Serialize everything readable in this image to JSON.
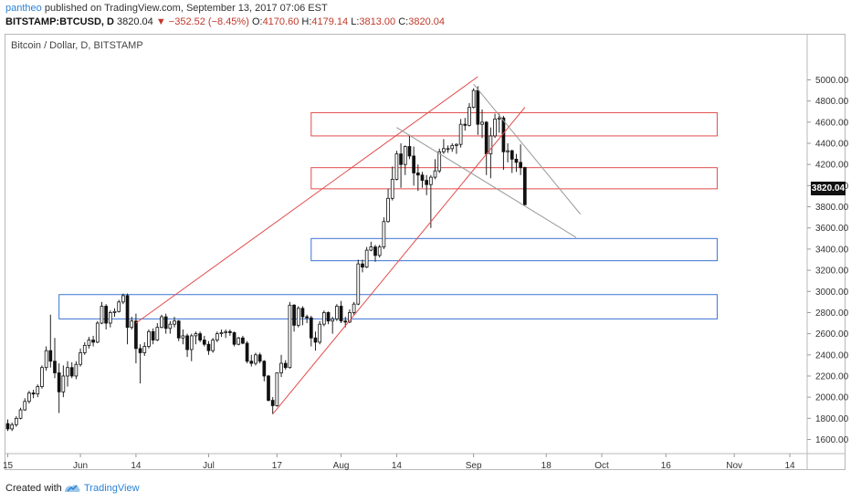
{
  "header": {
    "user": "pantheo",
    "published": "published on TradingView.com, September 13, 2017 07:06 EST",
    "symbol": "BITSTAMP:BTCUSD, D",
    "last": "3820.04",
    "change": "▼ −352.52 (−8.45%)",
    "o_label": "O:",
    "o_value": "4170.60",
    "h_label": "H:",
    "h_value": "4179.14",
    "l_label": "L:",
    "l_value": "3813.00",
    "c_label": "C:",
    "c_value": "3820.04"
  },
  "footer": {
    "created": "Created with",
    "brand": "TradingView"
  },
  "chart_data": {
    "type": "candlestick",
    "title": "Bitcoin / Dollar, D, BITSTAMP",
    "current_price_label": "3820.04",
    "ylim": [
      1500,
      5100
    ],
    "y_ticks": [
      1600,
      1800,
      2000,
      2200,
      2400,
      2600,
      2800,
      3000,
      3200,
      3400,
      3600,
      3800,
      4000,
      4200,
      4400,
      4600,
      4800,
      5000
    ],
    "y_tick_labels": [
      "1600.00",
      "1800.00",
      "2000.00",
      "2200.00",
      "2400.00",
      "2600.00",
      "2800.00",
      "3000.00",
      "3200.00",
      "3400.00",
      "3600.00",
      "3800.00",
      "4000.00",
      "4200.00",
      "4400.00",
      "4600.00",
      "4800.00",
      "5000.00"
    ],
    "x_ticks": [
      {
        "label": "15",
        "date": "2017-05-15"
      },
      {
        "label": "Jun",
        "date": "2017-06-01"
      },
      {
        "label": "14",
        "date": "2017-06-14"
      },
      {
        "label": "Jul",
        "date": "2017-07-01"
      },
      {
        "label": "17",
        "date": "2017-07-17"
      },
      {
        "label": "Aug",
        "date": "2017-08-01"
      },
      {
        "label": "14",
        "date": "2017-08-14"
      },
      {
        "label": "Sep",
        "date": "2017-09-01"
      },
      {
        "label": "18",
        "date": "2017-09-18"
      },
      {
        "label": "Oct",
        "date": "2017-10-01"
      },
      {
        "label": "16",
        "date": "2017-10-16"
      },
      {
        "label": "Nov",
        "date": "2017-11-01"
      },
      {
        "label": "14",
        "date": "2017-11-14"
      }
    ],
    "candles": [
      {
        "date": "2017-05-15",
        "o": 1750,
        "h": 1790,
        "l": 1680,
        "c": 1700
      },
      {
        "date": "2017-05-16",
        "o": 1700,
        "h": 1760,
        "l": 1680,
        "c": 1740
      },
      {
        "date": "2017-05-17",
        "o": 1740,
        "h": 1820,
        "l": 1720,
        "c": 1800
      },
      {
        "date": "2017-05-18",
        "o": 1800,
        "h": 1900,
        "l": 1790,
        "c": 1880
      },
      {
        "date": "2017-05-19",
        "o": 1880,
        "h": 1990,
        "l": 1870,
        "c": 1960
      },
      {
        "date": "2017-05-20",
        "o": 1960,
        "h": 2060,
        "l": 1940,
        "c": 2040
      },
      {
        "date": "2017-05-21",
        "o": 2040,
        "h": 2070,
        "l": 1990,
        "c": 2030
      },
      {
        "date": "2017-05-22",
        "o": 2030,
        "h": 2120,
        "l": 2000,
        "c": 2100
      },
      {
        "date": "2017-05-23",
        "o": 2100,
        "h": 2300,
        "l": 2080,
        "c": 2280
      },
      {
        "date": "2017-05-24",
        "o": 2280,
        "h": 2480,
        "l": 2250,
        "c": 2440
      },
      {
        "date": "2017-05-25",
        "o": 2440,
        "h": 2780,
        "l": 2280,
        "c": 2340
      },
      {
        "date": "2017-05-26",
        "o": 2340,
        "h": 2560,
        "l": 2180,
        "c": 2230
      },
      {
        "date": "2017-05-27",
        "o": 2230,
        "h": 2320,
        "l": 1850,
        "c": 2050
      },
      {
        "date": "2017-05-28",
        "o": 2050,
        "h": 2300,
        "l": 2000,
        "c": 2200
      },
      {
        "date": "2017-05-29",
        "o": 2200,
        "h": 2340,
        "l": 2100,
        "c": 2280
      },
      {
        "date": "2017-05-30",
        "o": 2280,
        "h": 2330,
        "l": 2180,
        "c": 2200
      },
      {
        "date": "2017-05-31",
        "o": 2200,
        "h": 2340,
        "l": 2170,
        "c": 2310
      },
      {
        "date": "2017-06-01",
        "o": 2310,
        "h": 2460,
        "l": 2290,
        "c": 2420
      },
      {
        "date": "2017-06-02",
        "o": 2420,
        "h": 2520,
        "l": 2400,
        "c": 2490
      },
      {
        "date": "2017-06-03",
        "o": 2490,
        "h": 2570,
        "l": 2460,
        "c": 2540
      },
      {
        "date": "2017-06-04",
        "o": 2540,
        "h": 2580,
        "l": 2480,
        "c": 2520
      },
      {
        "date": "2017-06-05",
        "o": 2520,
        "h": 2720,
        "l": 2510,
        "c": 2700
      },
      {
        "date": "2017-06-06",
        "o": 2700,
        "h": 2900,
        "l": 2690,
        "c": 2860
      },
      {
        "date": "2017-06-07",
        "o": 2860,
        "h": 2880,
        "l": 2640,
        "c": 2700
      },
      {
        "date": "2017-06-08",
        "o": 2700,
        "h": 2820,
        "l": 2660,
        "c": 2800
      },
      {
        "date": "2017-06-09",
        "o": 2800,
        "h": 2840,
        "l": 2760,
        "c": 2810
      },
      {
        "date": "2017-06-10",
        "o": 2810,
        "h": 2920,
        "l": 2800,
        "c": 2900
      },
      {
        "date": "2017-06-11",
        "o": 2900,
        "h": 2980,
        "l": 2880,
        "c": 2960
      },
      {
        "date": "2017-06-12",
        "o": 2960,
        "h": 2980,
        "l": 2500,
        "c": 2660
      },
      {
        "date": "2017-06-13",
        "o": 2660,
        "h": 2760,
        "l": 2640,
        "c": 2720
      },
      {
        "date": "2017-06-14",
        "o": 2720,
        "h": 2790,
        "l": 2320,
        "c": 2460
      },
      {
        "date": "2017-06-15",
        "o": 2460,
        "h": 2500,
        "l": 2130,
        "c": 2420
      },
      {
        "date": "2017-06-16",
        "o": 2420,
        "h": 2520,
        "l": 2390,
        "c": 2480
      },
      {
        "date": "2017-06-17",
        "o": 2480,
        "h": 2640,
        "l": 2460,
        "c": 2620
      },
      {
        "date": "2017-06-18",
        "o": 2620,
        "h": 2650,
        "l": 2500,
        "c": 2540
      },
      {
        "date": "2017-06-19",
        "o": 2540,
        "h": 2700,
        "l": 2530,
        "c": 2660
      },
      {
        "date": "2017-06-20",
        "o": 2660,
        "h": 2780,
        "l": 2650,
        "c": 2760
      },
      {
        "date": "2017-06-21",
        "o": 2760,
        "h": 2790,
        "l": 2600,
        "c": 2650
      },
      {
        "date": "2017-06-22",
        "o": 2650,
        "h": 2720,
        "l": 2600,
        "c": 2690
      },
      {
        "date": "2017-06-23",
        "o": 2690,
        "h": 2760,
        "l": 2660,
        "c": 2720
      },
      {
        "date": "2017-06-24",
        "o": 2720,
        "h": 2730,
        "l": 2530,
        "c": 2560
      },
      {
        "date": "2017-06-25",
        "o": 2560,
        "h": 2640,
        "l": 2500,
        "c": 2580
      },
      {
        "date": "2017-06-26",
        "o": 2580,
        "h": 2600,
        "l": 2380,
        "c": 2450
      },
      {
        "date": "2017-06-27",
        "o": 2450,
        "h": 2600,
        "l": 2340,
        "c": 2580
      },
      {
        "date": "2017-06-28",
        "o": 2580,
        "h": 2620,
        "l": 2500,
        "c": 2600
      },
      {
        "date": "2017-06-29",
        "o": 2600,
        "h": 2620,
        "l": 2520,
        "c": 2540
      },
      {
        "date": "2017-06-30",
        "o": 2540,
        "h": 2580,
        "l": 2480,
        "c": 2500
      },
      {
        "date": "2017-07-01",
        "o": 2500,
        "h": 2530,
        "l": 2400,
        "c": 2440
      },
      {
        "date": "2017-07-02",
        "o": 2440,
        "h": 2560,
        "l": 2420,
        "c": 2540
      },
      {
        "date": "2017-07-03",
        "o": 2540,
        "h": 2620,
        "l": 2520,
        "c": 2600
      },
      {
        "date": "2017-07-04",
        "o": 2600,
        "h": 2640,
        "l": 2570,
        "c": 2610
      },
      {
        "date": "2017-07-05",
        "o": 2610,
        "h": 2640,
        "l": 2560,
        "c": 2620
      },
      {
        "date": "2017-07-06",
        "o": 2620,
        "h": 2640,
        "l": 2580,
        "c": 2610
      },
      {
        "date": "2017-07-07",
        "o": 2610,
        "h": 2620,
        "l": 2480,
        "c": 2500
      },
      {
        "date": "2017-07-08",
        "o": 2500,
        "h": 2570,
        "l": 2490,
        "c": 2560
      },
      {
        "date": "2017-07-09",
        "o": 2560,
        "h": 2580,
        "l": 2500,
        "c": 2510
      },
      {
        "date": "2017-07-10",
        "o": 2510,
        "h": 2530,
        "l": 2320,
        "c": 2340
      },
      {
        "date": "2017-07-11",
        "o": 2340,
        "h": 2400,
        "l": 2290,
        "c": 2320
      },
      {
        "date": "2017-07-12",
        "o": 2320,
        "h": 2420,
        "l": 2300,
        "c": 2400
      },
      {
        "date": "2017-07-13",
        "o": 2400,
        "h": 2420,
        "l": 2320,
        "c": 2340
      },
      {
        "date": "2017-07-14",
        "o": 2340,
        "h": 2350,
        "l": 2150,
        "c": 2200
      },
      {
        "date": "2017-07-15",
        "o": 2200,
        "h": 2210,
        "l": 1960,
        "c": 1970
      },
      {
        "date": "2017-07-16",
        "o": 1970,
        "h": 2000,
        "l": 1840,
        "c": 1920
      },
      {
        "date": "2017-07-17",
        "o": 1920,
        "h": 2230,
        "l": 1910,
        "c": 2230
      },
      {
        "date": "2017-07-18",
        "o": 2230,
        "h": 2400,
        "l": 2190,
        "c": 2320
      },
      {
        "date": "2017-07-19",
        "o": 2320,
        "h": 2350,
        "l": 2260,
        "c": 2280
      },
      {
        "date": "2017-07-20",
        "o": 2280,
        "h": 2900,
        "l": 2270,
        "c": 2870
      },
      {
        "date": "2017-07-21",
        "o": 2870,
        "h": 2880,
        "l": 2620,
        "c": 2680
      },
      {
        "date": "2017-07-22",
        "o": 2680,
        "h": 2860,
        "l": 2660,
        "c": 2840
      },
      {
        "date": "2017-07-23",
        "o": 2840,
        "h": 2860,
        "l": 2680,
        "c": 2760
      },
      {
        "date": "2017-07-24",
        "o": 2760,
        "h": 2780,
        "l": 2700,
        "c": 2750
      },
      {
        "date": "2017-07-25",
        "o": 2750,
        "h": 2770,
        "l": 2480,
        "c": 2560
      },
      {
        "date": "2017-07-26",
        "o": 2560,
        "h": 2620,
        "l": 2440,
        "c": 2520
      },
      {
        "date": "2017-07-27",
        "o": 2520,
        "h": 2720,
        "l": 2500,
        "c": 2690
      },
      {
        "date": "2017-07-28",
        "o": 2690,
        "h": 2820,
        "l": 2670,
        "c": 2800
      },
      {
        "date": "2017-07-29",
        "o": 2800,
        "h": 2810,
        "l": 2690,
        "c": 2720
      },
      {
        "date": "2017-07-30",
        "o": 2720,
        "h": 2760,
        "l": 2600,
        "c": 2740
      },
      {
        "date": "2017-07-31",
        "o": 2740,
        "h": 2880,
        "l": 2720,
        "c": 2860
      },
      {
        "date": "2017-08-01",
        "o": 2860,
        "h": 2910,
        "l": 2700,
        "c": 2720
      },
      {
        "date": "2017-08-02",
        "o": 2720,
        "h": 2760,
        "l": 2660,
        "c": 2710
      },
      {
        "date": "2017-08-03",
        "o": 2710,
        "h": 2830,
        "l": 2700,
        "c": 2800
      },
      {
        "date": "2017-08-04",
        "o": 2800,
        "h": 2900,
        "l": 2780,
        "c": 2880
      },
      {
        "date": "2017-08-05",
        "o": 2880,
        "h": 3300,
        "l": 2870,
        "c": 3260
      },
      {
        "date": "2017-08-06",
        "o": 3260,
        "h": 3300,
        "l": 3180,
        "c": 3230
      },
      {
        "date": "2017-08-07",
        "o": 3230,
        "h": 3420,
        "l": 3220,
        "c": 3390
      },
      {
        "date": "2017-08-08",
        "o": 3390,
        "h": 3470,
        "l": 3380,
        "c": 3420
      },
      {
        "date": "2017-08-09",
        "o": 3420,
        "h": 3440,
        "l": 3280,
        "c": 3340
      },
      {
        "date": "2017-08-10",
        "o": 3340,
        "h": 3440,
        "l": 3320,
        "c": 3420
      },
      {
        "date": "2017-08-11",
        "o": 3420,
        "h": 3700,
        "l": 3400,
        "c": 3660
      },
      {
        "date": "2017-08-12",
        "o": 3660,
        "h": 3970,
        "l": 3650,
        "c": 3880
      },
      {
        "date": "2017-08-13",
        "o": 3880,
        "h": 4180,
        "l": 3860,
        "c": 4060
      },
      {
        "date": "2017-08-14",
        "o": 4060,
        "h": 4330,
        "l": 4050,
        "c": 4300
      },
      {
        "date": "2017-08-15",
        "o": 4300,
        "h": 4400,
        "l": 3980,
        "c": 4200
      },
      {
        "date": "2017-08-16",
        "o": 4200,
        "h": 4380,
        "l": 4100,
        "c": 4370
      },
      {
        "date": "2017-08-17",
        "o": 4370,
        "h": 4480,
        "l": 4250,
        "c": 4280
      },
      {
        "date": "2017-08-18",
        "o": 4280,
        "h": 4370,
        "l": 4000,
        "c": 4120
      },
      {
        "date": "2017-08-19",
        "o": 4120,
        "h": 4200,
        "l": 3950,
        "c": 4100
      },
      {
        "date": "2017-08-20",
        "o": 4100,
        "h": 4130,
        "l": 3980,
        "c": 4050
      },
      {
        "date": "2017-08-21",
        "o": 4050,
        "h": 4100,
        "l": 3910,
        "c": 4010
      },
      {
        "date": "2017-08-22",
        "o": 4010,
        "h": 4100,
        "l": 3600,
        "c": 4080
      },
      {
        "date": "2017-08-23",
        "o": 4080,
        "h": 4250,
        "l": 4060,
        "c": 4140
      },
      {
        "date": "2017-08-24",
        "o": 4140,
        "h": 4350,
        "l": 4120,
        "c": 4320
      },
      {
        "date": "2017-08-25",
        "o": 4320,
        "h": 4440,
        "l": 4300,
        "c": 4350
      },
      {
        "date": "2017-08-26",
        "o": 4350,
        "h": 4380,
        "l": 4310,
        "c": 4350
      },
      {
        "date": "2017-08-27",
        "o": 4350,
        "h": 4400,
        "l": 4320,
        "c": 4380
      },
      {
        "date": "2017-08-28",
        "o": 4380,
        "h": 4400,
        "l": 4300,
        "c": 4390
      },
      {
        "date": "2017-08-29",
        "o": 4390,
        "h": 4630,
        "l": 4360,
        "c": 4580
      },
      {
        "date": "2017-08-30",
        "o": 4580,
        "h": 4640,
        "l": 4520,
        "c": 4570
      },
      {
        "date": "2017-08-31",
        "o": 4570,
        "h": 4780,
        "l": 4560,
        "c": 4740
      },
      {
        "date": "2017-09-01",
        "o": 4740,
        "h": 4920,
        "l": 4730,
        "c": 4900
      },
      {
        "date": "2017-09-02",
        "o": 4900,
        "h": 4940,
        "l": 4480,
        "c": 4580
      },
      {
        "date": "2017-09-03",
        "o": 4580,
        "h": 4720,
        "l": 4450,
        "c": 4600
      },
      {
        "date": "2017-09-04",
        "o": 4600,
        "h": 4610,
        "l": 4100,
        "c": 4300
      },
      {
        "date": "2017-09-05",
        "o": 4300,
        "h": 4550,
        "l": 4070,
        "c": 4470
      },
      {
        "date": "2017-09-06",
        "o": 4470,
        "h": 4680,
        "l": 4450,
        "c": 4630
      },
      {
        "date": "2017-09-07",
        "o": 4630,
        "h": 4680,
        "l": 4500,
        "c": 4640
      },
      {
        "date": "2017-09-08",
        "o": 4640,
        "h": 4660,
        "l": 4150,
        "c": 4320
      },
      {
        "date": "2017-09-09",
        "o": 4320,
        "h": 4400,
        "l": 4220,
        "c": 4330
      },
      {
        "date": "2017-09-10",
        "o": 4330,
        "h": 4340,
        "l": 4120,
        "c": 4250
      },
      {
        "date": "2017-09-11",
        "o": 4250,
        "h": 4300,
        "l": 4130,
        "c": 4220
      },
      {
        "date": "2017-09-12",
        "o": 4220,
        "h": 4390,
        "l": 4100,
        "c": 4170
      },
      {
        "date": "2017-09-13",
        "o": 4170.6,
        "h": 4179.14,
        "l": 3813,
        "c": 3820.04
      }
    ],
    "zones": [
      {
        "name": "red-zone-upper",
        "color": "#e24b4b",
        "from": "2017-07-25",
        "to": "2017-10-28",
        "low": 4470,
        "high": 4690
      },
      {
        "name": "red-zone-middle",
        "color": "#e24b4b",
        "from": "2017-07-25",
        "to": "2017-10-28",
        "low": 3970,
        "high": 4170
      },
      {
        "name": "blue-zone-middle",
        "color": "#3b73d4",
        "from": "2017-07-25",
        "to": "2017-10-28",
        "low": 3290,
        "high": 3500
      },
      {
        "name": "blue-zone-lower",
        "color": "#3b73d4",
        "from": "2017-05-27",
        "to": "2017-10-28",
        "low": 2740,
        "high": 2970
      }
    ],
    "trendlines": [
      {
        "name": "rising-wedge-upper",
        "color": "#e24b4b",
        "from": {
          "date": "2017-06-14",
          "price": 2700
        },
        "to": {
          "date": "2017-09-02",
          "price": 5030
        }
      },
      {
        "name": "rising-wedge-lower",
        "color": "#e24b4b",
        "from": {
          "date": "2017-07-16",
          "price": 1840
        },
        "to": {
          "date": "2017-09-13",
          "price": 4740
        }
      },
      {
        "name": "grey-line-lower",
        "color": "#9a9a9a",
        "from": {
          "date": "2017-08-14",
          "price": 4550
        },
        "to": {
          "date": "2017-09-25",
          "price": 3510
        }
      },
      {
        "name": "grey-line-upper",
        "color": "#9a9a9a",
        "from": {
          "date": "2017-09-01",
          "price": 4960
        },
        "to": {
          "date": "2017-09-26",
          "price": 3730
        }
      }
    ],
    "colors": {
      "up": "#ffffff",
      "down": "#111111",
      "wick": "#222222",
      "axis_text": "#333333"
    }
  }
}
